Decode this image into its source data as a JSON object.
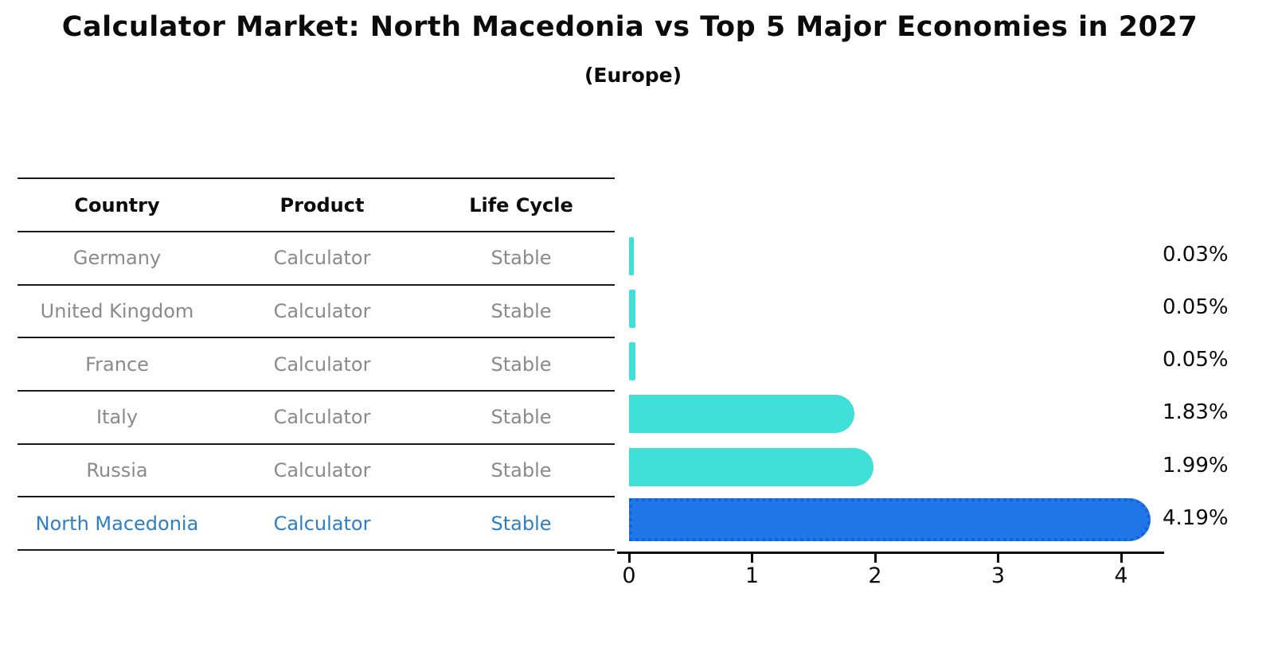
{
  "header": {
    "title": "Calculator Market: North Macedonia vs Top 5 Major Economies in 2027",
    "subtitle": "(Europe)"
  },
  "table": {
    "headers": [
      "Country",
      "Product",
      "Life Cycle"
    ],
    "rows": [
      {
        "country": "Germany",
        "product": "Calculator",
        "life_cycle": "Stable",
        "highlighted": false
      },
      {
        "country": "United Kingdom",
        "product": "Calculator",
        "life_cycle": "Stable",
        "highlighted": false
      },
      {
        "country": "France",
        "product": "Calculator",
        "life_cycle": "Stable",
        "highlighted": false
      },
      {
        "country": "Italy",
        "product": "Calculator",
        "life_cycle": "Stable",
        "highlighted": false
      },
      {
        "country": "Russia",
        "product": "Calculator",
        "life_cycle": "Stable",
        "highlighted": false
      },
      {
        "country": "North Macedonia",
        "product": "Calculator",
        "life_cycle": "Stable",
        "highlighted": true
      }
    ]
  },
  "chart_data": {
    "type": "bar",
    "orientation": "horizontal",
    "title": "Calculator Market: North Macedonia vs Top 5 Major Economies in 2027 (Europe)",
    "categories": [
      "Germany",
      "United Kingdom",
      "France",
      "Italy",
      "Russia",
      "North Macedonia"
    ],
    "values": [
      0.03,
      0.05,
      0.05,
      1.83,
      1.99,
      4.19
    ],
    "value_labels": [
      "0.03%",
      "0.05%",
      "0.05%",
      "1.83%",
      "1.99%",
      "4.19%"
    ],
    "x_ticks": [
      "0",
      "1",
      "2",
      "3",
      "4"
    ],
    "xlim": [
      0,
      4.35
    ],
    "xlabel": "",
    "ylabel": "",
    "grid": false,
    "legend": false,
    "highlight_index": 5,
    "default_fill": "#40e0d8",
    "highlight_fill": "#1f76e8",
    "highlight_border": "#1560d4"
  },
  "colors": {
    "text": "#0b0b0b",
    "muted_row_text": "#8a8a8a",
    "highlight_row_text": "#2e7ec5",
    "table_line": "#1a1a1a"
  }
}
